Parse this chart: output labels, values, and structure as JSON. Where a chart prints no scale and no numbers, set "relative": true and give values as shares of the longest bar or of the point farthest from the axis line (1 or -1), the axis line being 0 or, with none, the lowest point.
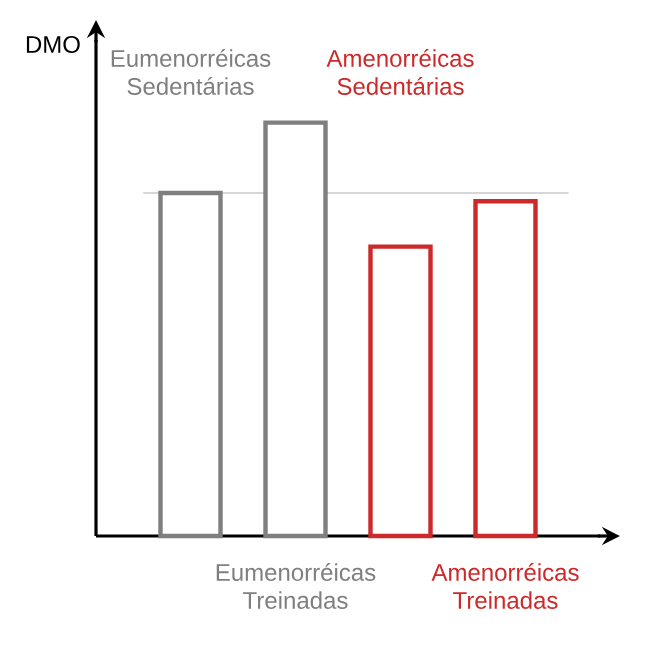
{
  "chart_data": {
    "type": "bar",
    "relative": true,
    "ylabel": "DMO",
    "categories": [
      "Eumenorréicas Sedentárias",
      "Eumenorréicas Treinadas",
      "Amenorréicas Sedentárias",
      "Amenorréicas Treinadas"
    ],
    "values": [
      0.83,
      1,
      0.7,
      0.81
    ],
    "colors": [
      "#7f7f7f",
      "#7f7f7f",
      "#cc2a2a",
      "#cc2a2a"
    ],
    "ref_lines": [
      {
        "axis": "y",
        "value": 0.83,
        "color": "#c8c8c8"
      }
    ]
  }
}
